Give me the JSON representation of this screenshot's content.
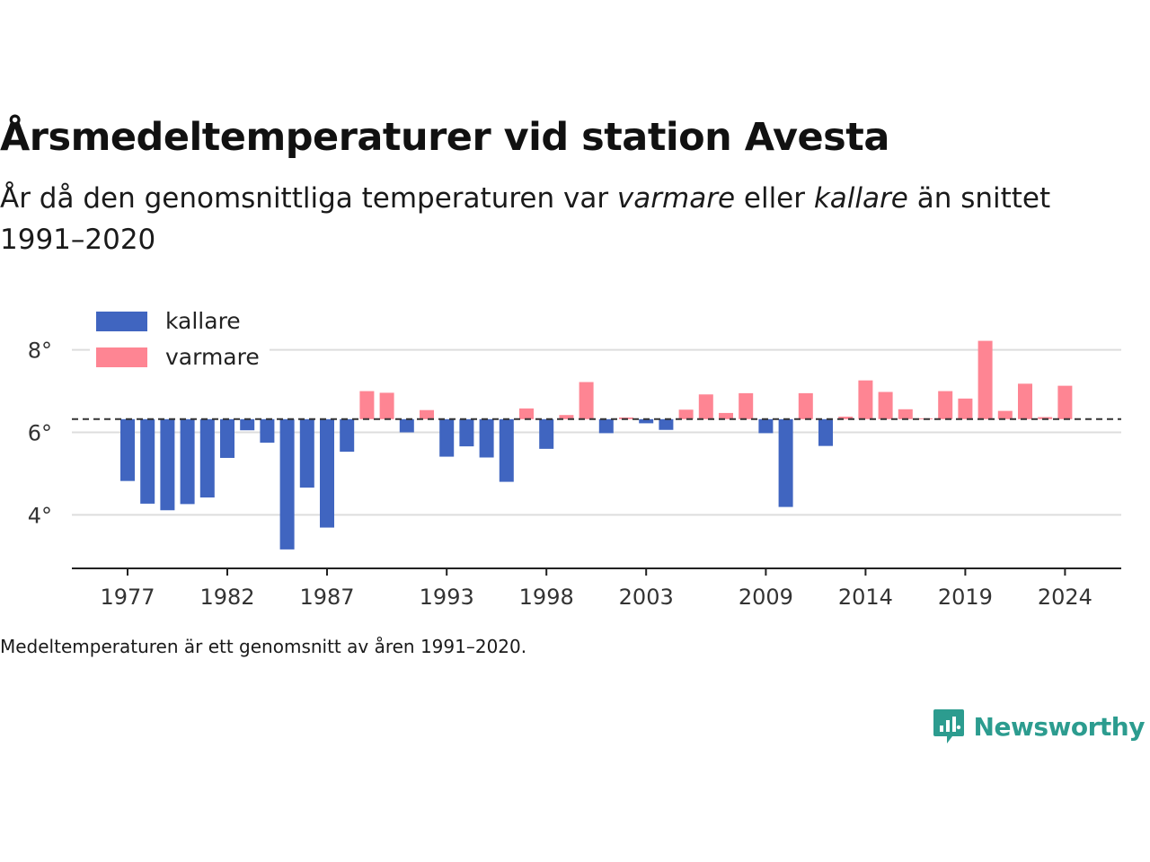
{
  "header": {
    "title": "Årsmedeltemperaturer vid station Avesta",
    "subtitle_part1": "År då den genomsnittliga temperaturen var ",
    "subtitle_warm": "varmare",
    "subtitle_part2": " eller ",
    "subtitle_cold": "kallare",
    "subtitle_part3": " än snittet 1991–2020"
  },
  "footnote": "Medeltemperaturen är ett genomsnitt av åren 1991–2020.",
  "brand": {
    "name": "Newsworthy",
    "icon": "newsworthy-logo-icon",
    "color": "#2c9c8f"
  },
  "chart_data": {
    "type": "bar",
    "title": "Årsmedeltemperaturer vid station Avesta",
    "baseline": 6.32,
    "baseline_style": "dashed",
    "ylim": [
      2.7,
      9.3
    ],
    "yticks": [
      4,
      6,
      8
    ],
    "ytick_labels": [
      "4°",
      "6°",
      "8°"
    ],
    "xticks": [
      1977,
      1982,
      1987,
      1993,
      1998,
      2003,
      2009,
      2014,
      2019,
      2024
    ],
    "xtick_labels": [
      "1977",
      "1982",
      "1987",
      "1993",
      "1998",
      "2003",
      "2009",
      "2014",
      "2019",
      "2024"
    ],
    "grid": true,
    "legend_position": "top-left",
    "series": [
      {
        "name": "kallare",
        "color": "#4065c0"
      },
      {
        "name": "varmare",
        "color": "#fe8593"
      }
    ],
    "years": [
      1977,
      1978,
      1979,
      1980,
      1981,
      1982,
      1983,
      1984,
      1985,
      1986,
      1987,
      1988,
      1989,
      1990,
      1991,
      1992,
      1993,
      1994,
      1995,
      1996,
      1997,
      1998,
      1999,
      2000,
      2001,
      2002,
      2003,
      2004,
      2005,
      2006,
      2007,
      2008,
      2009,
      2010,
      2011,
      2012,
      2013,
      2014,
      2015,
      2016,
      2017,
      2018,
      2019,
      2020,
      2021,
      2022,
      2023,
      2024
    ],
    "values": [
      4.82,
      4.27,
      4.11,
      4.26,
      4.42,
      5.38,
      6.05,
      5.75,
      3.16,
      4.66,
      3.69,
      5.53,
      7.0,
      6.96,
      6.0,
      6.54,
      5.41,
      5.66,
      5.39,
      4.8,
      6.58,
      5.6,
      6.42,
      7.22,
      5.98,
      6.36,
      6.22,
      6.06,
      6.55,
      6.92,
      6.47,
      6.95,
      5.98,
      4.19,
      6.95,
      5.67,
      6.38,
      7.26,
      6.98,
      6.56,
      6.34,
      7.0,
      6.82,
      8.22,
      6.52,
      7.18,
      6.37,
      7.13
    ]
  }
}
